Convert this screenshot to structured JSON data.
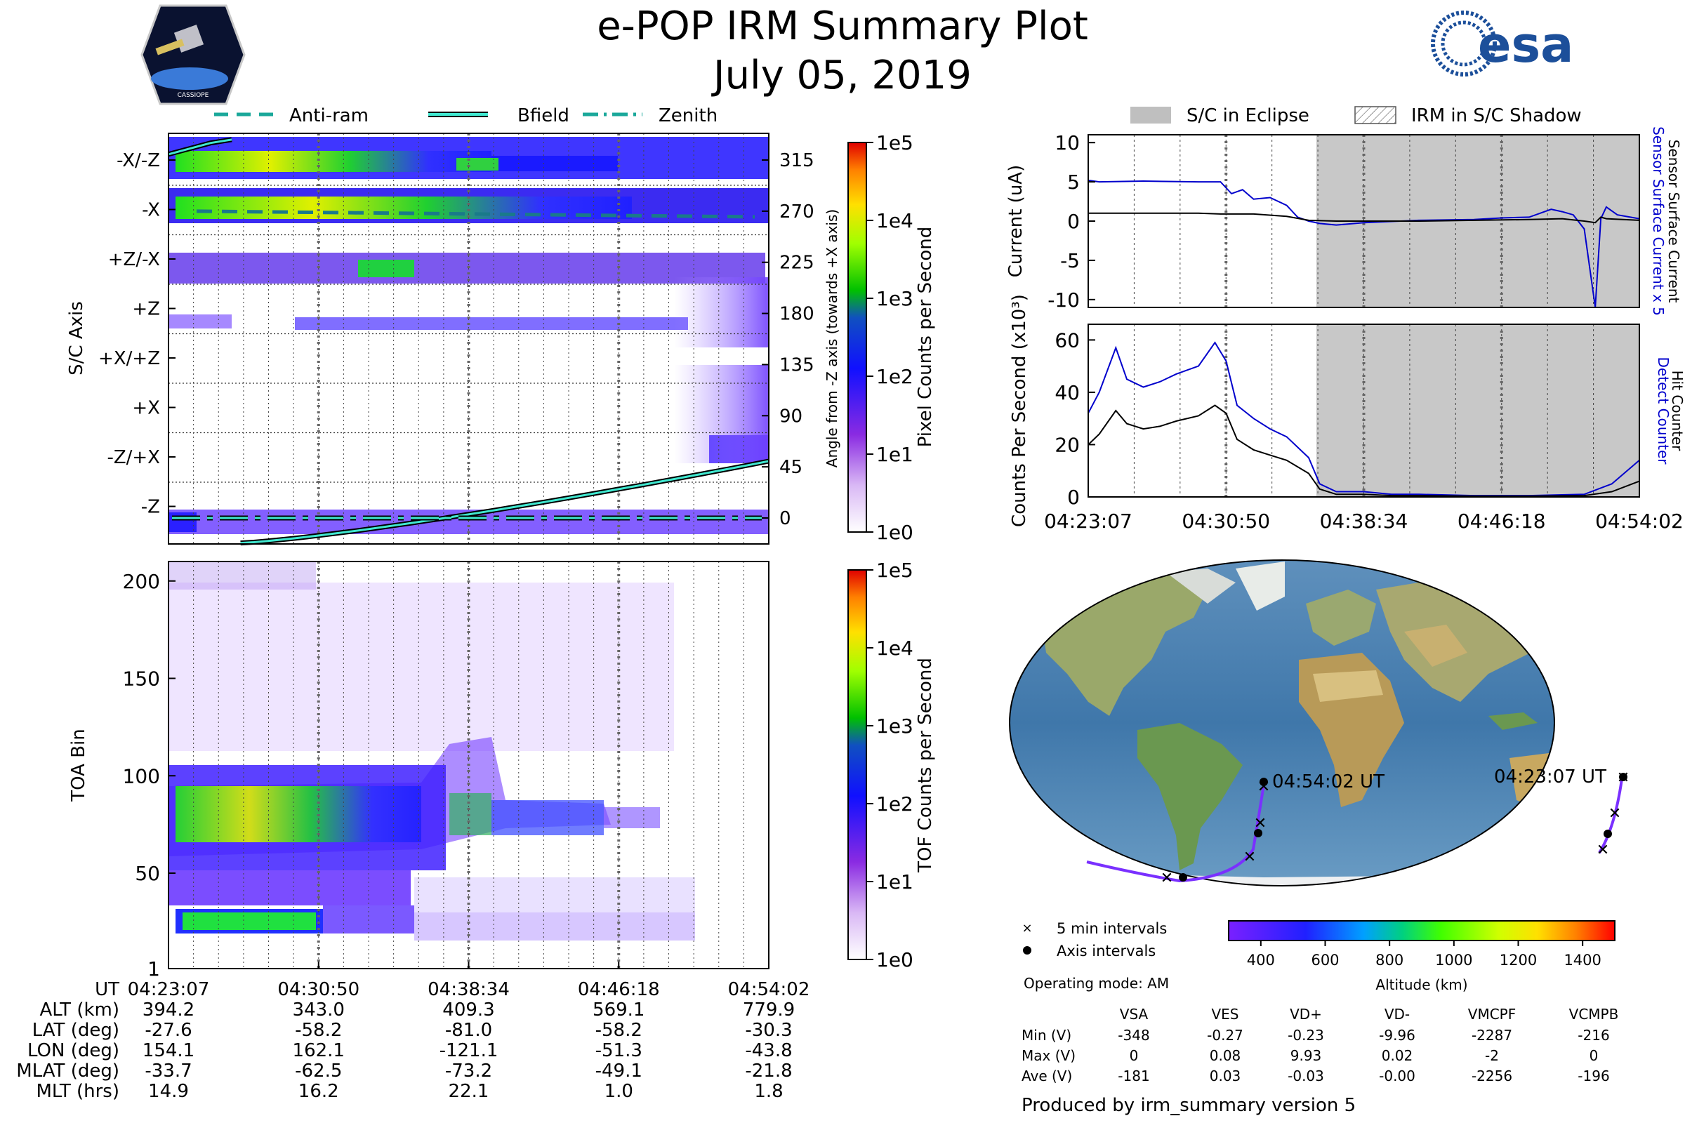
{
  "title": "e-POP IRM Summary Plot",
  "date": "July 05, 2019",
  "logos": {
    "cassiope": "CASSIOPE",
    "esa": "esa"
  },
  "axis_legend": [
    {
      "label": "Anti-ram",
      "style": "dashed"
    },
    {
      "label": "Bfield",
      "style": "solid"
    },
    {
      "label": "Zenith",
      "style": "dashdot"
    }
  ],
  "eclipse_legend": [
    {
      "label": "S/C in Eclipse",
      "style": "gray"
    },
    {
      "label": "IRM in S/C Shadow",
      "style": "hatch"
    }
  ],
  "time_ticks": [
    "04:23:07",
    "04:30:50",
    "04:38:34",
    "04:46:18",
    "04:54:02"
  ],
  "chart_data": [
    {
      "id": "pixel-axis-plot",
      "type": "heatmap",
      "ylabel": "S/C Axis",
      "y_categories": [
        "-X/-Z",
        "-X",
        "+Z/-X",
        "+Z",
        "+X/+Z",
        "+X",
        "-Z/+X",
        "-Z"
      ],
      "right_ylabel": "Angle from -Z axis (towards +X axis)",
      "right_ticks": [
        315,
        270,
        225,
        180,
        135,
        90,
        45,
        0
      ],
      "colorbar": {
        "label": "Pixel Counts per Second",
        "ticks": [
          "1e5",
          "1e4",
          "1e3",
          "1e2",
          "1e1",
          "1e0"
        ]
      },
      "lines": [
        {
          "name": "Anti-ram",
          "values_deg": [
            270,
            265,
            265,
            265,
            265
          ]
        },
        {
          "name": "Zenith",
          "values_deg": [
            0,
            0,
            0,
            0,
            0
          ]
        },
        {
          "name": "Bfield",
          "values_deg": [
            325,
            -20,
            -5,
            15,
            50
          ]
        }
      ]
    },
    {
      "id": "toa-plot",
      "type": "heatmap",
      "ylabel": "TOA Bin",
      "yticks": [
        1,
        50,
        100,
        150,
        200
      ],
      "ylim": [
        1,
        210
      ],
      "colorbar": {
        "label": "TOF Counts per Second",
        "ticks": [
          "1e5",
          "1e4",
          "1e3",
          "1e2",
          "1e1",
          "1e0"
        ]
      }
    },
    {
      "id": "current-plot",
      "type": "line",
      "ylabel": "Current (uA)",
      "yticks": [
        10,
        5,
        0,
        -5,
        -10
      ],
      "ylim": [
        -11,
        11
      ],
      "right_labels": [
        "Sensor Surface Current x 5",
        "Sensor Surface Current"
      ],
      "series": [
        {
          "name": "Sensor Surface Current x 5",
          "color": "#0000cc",
          "x": [
            0,
            0.02,
            0.1,
            0.2,
            0.24,
            0.26,
            0.28,
            0.3,
            0.33,
            0.36,
            0.38,
            0.4,
            0.42,
            0.45,
            0.5,
            0.6,
            0.7,
            0.75,
            0.8,
            0.84,
            0.86,
            0.88,
            0.9,
            0.92,
            0.93,
            0.94,
            0.96,
            1.0
          ],
          "y": [
            5.2,
            5.0,
            5.1,
            5.0,
            5.0,
            3.5,
            4.0,
            2.8,
            3.0,
            2.0,
            0.5,
            0,
            -0.3,
            -0.5,
            -0.2,
            0.1,
            0.2,
            0.4,
            0.5,
            1.5,
            1.2,
            0.8,
            -1.0,
            -11,
            0.3,
            1.8,
            0.8,
            0.3
          ]
        },
        {
          "name": "Sensor Surface Current",
          "color": "#000000",
          "x": [
            0,
            0.1,
            0.2,
            0.24,
            0.3,
            0.36,
            0.4,
            0.45,
            0.5,
            0.6,
            0.7,
            0.8,
            0.86,
            0.9,
            0.92,
            0.93,
            0.94,
            1.0
          ],
          "y": [
            1.0,
            1.0,
            1.0,
            0.9,
            0.9,
            0.6,
            0.1,
            0,
            0,
            0,
            0.1,
            0.2,
            0.3,
            0,
            -0.2,
            0.5,
            0.3,
            0.1
          ]
        }
      ],
      "eclipse_start_frac": 0.414
    },
    {
      "id": "counts-plot",
      "type": "line",
      "ylabel": "Counts Per Second (x10³)",
      "yticks": [
        60,
        40,
        20,
        0
      ],
      "ylim": [
        0,
        66
      ],
      "right_labels": [
        "Detect Counter",
        "Hit Counter"
      ],
      "series": [
        {
          "name": "Detect Counter",
          "color": "#0000cc",
          "x": [
            0,
            0.02,
            0.05,
            0.07,
            0.1,
            0.13,
            0.16,
            0.2,
            0.23,
            0.25,
            0.27,
            0.3,
            0.33,
            0.36,
            0.4,
            0.42,
            0.45,
            0.5,
            0.55,
            0.6,
            0.7,
            0.8,
            0.9,
            0.95,
            1.0
          ],
          "y": [
            32,
            40,
            57,
            45,
            42,
            44,
            47,
            50,
            59,
            52,
            35,
            30,
            26,
            23,
            15,
            5,
            2,
            2,
            1,
            1,
            0.5,
            0.5,
            1,
            5,
            14
          ]
        },
        {
          "name": "Hit Counter",
          "color": "#000000",
          "x": [
            0,
            0.02,
            0.05,
            0.07,
            0.1,
            0.13,
            0.16,
            0.2,
            0.23,
            0.25,
            0.27,
            0.3,
            0.33,
            0.36,
            0.4,
            0.42,
            0.45,
            0.5,
            0.55,
            0.6,
            0.7,
            0.8,
            0.9,
            0.95,
            1.0
          ],
          "y": [
            20,
            24,
            33,
            28,
            26,
            27,
            29,
            31,
            35,
            32,
            22,
            18,
            16,
            14,
            9,
            3,
            1,
            1,
            0.5,
            0.5,
            0.3,
            0.3,
            0.5,
            2,
            6
          ]
        }
      ],
      "eclipse_start_frac": 0.414
    },
    {
      "id": "orbit-map",
      "type": "scatter",
      "labels": [
        "04:54:02 UT",
        "04:23:07 UT"
      ],
      "legend": [
        "5 min intervals",
        "Axis intervals"
      ],
      "colorbar": {
        "label": "Altitude (km)",
        "ticks": [
          400,
          600,
          800,
          1000,
          1200,
          1400
        ],
        "range": [
          300,
          1500
        ]
      }
    }
  ],
  "orbit_table": {
    "headers": [
      "UT",
      "ALT (km)",
      "LAT (deg)",
      "LON (deg)",
      "MLAT (deg)",
      "MLT (hrs)"
    ],
    "rows": [
      [
        "04:23:07",
        "394.2",
        "-27.6",
        "154.1",
        "-33.7",
        "14.9"
      ],
      [
        "04:30:50",
        "343.0",
        "-58.2",
        "162.1",
        "-62.5",
        "16.2"
      ],
      [
        "04:38:34",
        "409.3",
        "-81.0",
        "-121.1",
        "-73.2",
        "22.1"
      ],
      [
        "04:46:18",
        "569.1",
        "-58.2",
        "-51.3",
        "-49.1",
        "1.0"
      ],
      [
        "04:54:02",
        "779.9",
        "-30.3",
        "-43.8",
        "-21.8",
        "1.8"
      ]
    ]
  },
  "operating_mode": "Operating mode: AM",
  "voltage_table": {
    "columns": [
      "VSA",
      "VES",
      "VD+",
      "VD-",
      "VMCPF",
      "VCMPB"
    ],
    "rows": [
      {
        "label": "Min (V)",
        "values": [
          "-348",
          "-0.27",
          "-0.23",
          "-9.96",
          "-2287",
          "-216"
        ]
      },
      {
        "label": "Max (V)",
        "values": [
          "0",
          "0.08",
          "9.93",
          "0.02",
          "-2",
          "0"
        ]
      },
      {
        "label": "Ave (V)",
        "values": [
          "-181",
          "0.03",
          "-0.03",
          "-0.00",
          "-2256",
          "-196"
        ]
      }
    ]
  },
  "footer": "Produced by irm_summary version 5"
}
